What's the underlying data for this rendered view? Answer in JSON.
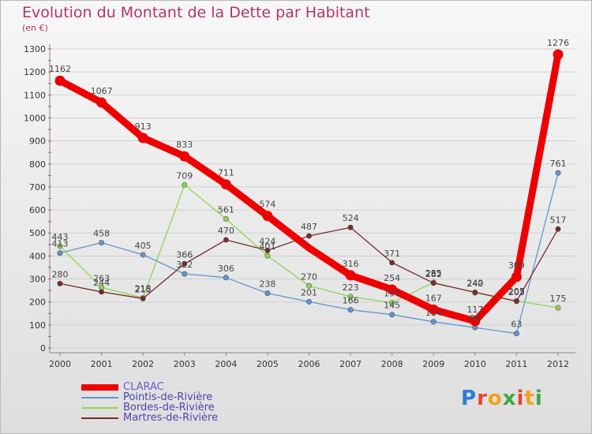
{
  "title": "Evolution du Montant de la Dette par Habitant",
  "unit": "(en €)",
  "logo": {
    "text": "Proxiti",
    "colors": [
      "#2a7fd4",
      "#e8452c",
      "#f2a21b",
      "#3da83c",
      "#e8452c",
      "#f2a21b",
      "#3da83c"
    ]
  },
  "colors": {
    "title": "#b1356c",
    "axis": "#333333",
    "grid": "#cfcfcf"
  },
  "chart_data": {
    "type": "line",
    "title": "Evolution du Montant de la Dette par Habitant",
    "ylabel": "(en €)",
    "ylim": [
      0,
      1300
    ],
    "yticks": [
      0,
      100,
      200,
      300,
      400,
      500,
      600,
      700,
      800,
      900,
      1000,
      1100,
      1200,
      1300
    ],
    "x": [
      "2000",
      "2001",
      "2002",
      "2003",
      "2004",
      "2005",
      "2006",
      "2007",
      "2008",
      "2009",
      "2010",
      "2011",
      "2012"
    ],
    "grid": "horizontal",
    "legend_position": "bottom-left",
    "series": [
      {
        "name": "CLARAC",
        "color": "#ee0000",
        "emphasis": true,
        "values": [
          1162,
          1067,
          913,
          833,
          711,
          574,
          null,
          316,
          254,
          167,
          117,
          309,
          1276
        ],
        "labels": [
          "1162",
          "1067",
          "913",
          "833",
          "711",
          "574",
          "",
          "316",
          "254",
          "167",
          "117",
          "309",
          "1276"
        ]
      },
      {
        "name": "Pointis-de-Rivière",
        "color": "#5f96d0",
        "emphasis": false,
        "values": [
          413,
          458,
          405,
          322,
          306,
          238,
          201,
          166,
          145,
          114,
          89,
          63,
          761
        ],
        "labels": [
          "413",
          "458",
          "405",
          "322",
          "306",
          "238",
          "201",
          "166",
          "145",
          "114",
          "89",
          "63",
          "761"
        ]
      },
      {
        "name": "Bordes-de-Rivière",
        "color": "#8ed553",
        "emphasis": false,
        "values": [
          443,
          263,
          218,
          709,
          561,
          401,
          270,
          223,
          197,
          285,
          240,
          205,
          175
        ],
        "labels": [
          "443",
          "263",
          "218",
          "709",
          "561",
          "401",
          "270",
          "223",
          "197",
          "285",
          "240",
          "205",
          "175"
        ]
      },
      {
        "name": "Martres-de-Rivière",
        "color": "#7a2a2a",
        "emphasis": false,
        "values": [
          280,
          244,
          215,
          366,
          470,
          424,
          487,
          524,
          371,
          282,
          242,
          203,
          517
        ],
        "labels": [
          "280",
          "244",
          "215",
          "366",
          "470",
          "424",
          "487",
          "524",
          "371",
          "282",
          "242",
          "203",
          "517"
        ]
      }
    ]
  }
}
